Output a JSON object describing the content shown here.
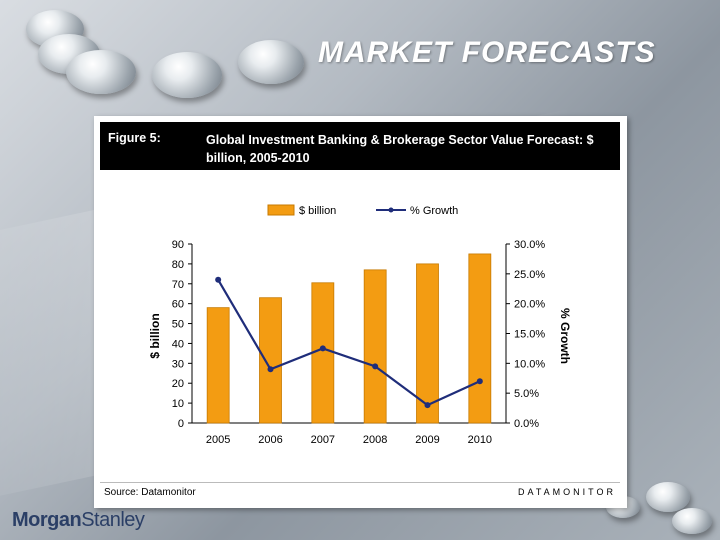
{
  "slide": {
    "title": "MARKET FORECASTS",
    "logo_part1": "Morgan",
    "logo_part2": "Stanley"
  },
  "figure": {
    "label": "Figure 5:",
    "title": "Global Investment Banking & Brokerage Sector Value Forecast: $ billion, 2005-2010",
    "source": "Source: Datamonitor",
    "vendor": "DATAMONITOR"
  },
  "colors": {
    "bar": "#f39c12",
    "bar_stroke": "#c77a00",
    "line": "#1f2d7a",
    "header_bg": "#000000"
  },
  "chart_data": {
    "type": "bar",
    "categories": [
      "2005",
      "2006",
      "2007",
      "2008",
      "2009",
      "2010"
    ],
    "series": [
      {
        "name": "$ billion",
        "type": "bar",
        "axis": "left",
        "values": [
          58,
          63,
          70.5,
          77,
          80,
          85
        ]
      },
      {
        "name": "% Growth",
        "type": "line",
        "axis": "right",
        "values": [
          24.0,
          9.0,
          12.5,
          9.5,
          3.0,
          7.0
        ]
      }
    ],
    "ylabel": "$ billion",
    "y2label": "% Growth",
    "ylim": [
      0,
      90
    ],
    "y2lim": [
      0,
      30
    ],
    "yticks": [
      "0",
      "10",
      "20",
      "30",
      "40",
      "50",
      "60",
      "70",
      "80",
      "90"
    ],
    "y2ticks": [
      "0.0%",
      "5.0%",
      "10.0%",
      "15.0%",
      "20.0%",
      "25.0%",
      "30.0%"
    ],
    "legend": "top",
    "grid": false
  }
}
